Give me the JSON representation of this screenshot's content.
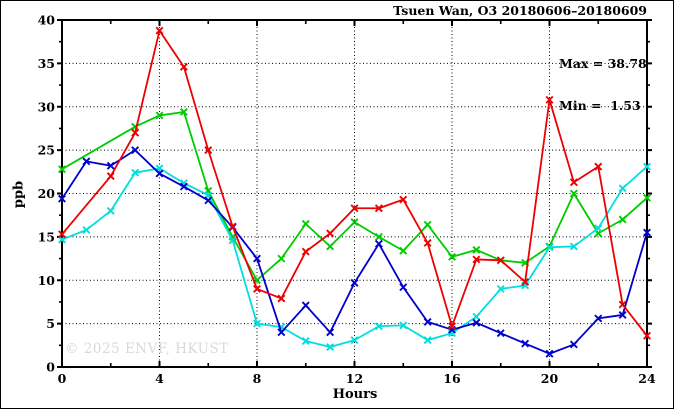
{
  "watermark": "© 2025 ENVF, HKUST",
  "annotation": {
    "max_label": "Max = 38.78",
    "min_label": "Min =  1.53"
  },
  "chart_data": {
    "type": "line",
    "title": "Tsuen Wan, O3 20180606–20180609",
    "xlabel": "Hours",
    "ylabel": "ppb",
    "xlim": [
      0,
      24
    ],
    "ylim": [
      0,
      40
    ],
    "xticks": [
      0,
      4,
      8,
      12,
      16,
      20,
      24
    ],
    "xticks_minor": [
      2,
      6,
      10,
      14,
      18,
      22
    ],
    "yticks": [
      0,
      5,
      10,
      15,
      20,
      25,
      30,
      35,
      40
    ],
    "yticks_minor": [
      2.5,
      7.5,
      12.5,
      17.5,
      22.5,
      27.5,
      32.5,
      37.5
    ],
    "grid": "dotted",
    "legend": "none",
    "max": 38.78,
    "min": 1.53,
    "x": [
      0,
      1,
      2,
      3,
      4,
      5,
      6,
      7,
      8,
      9,
      10,
      11,
      12,
      13,
      14,
      15,
      16,
      17,
      18,
      19,
      20,
      21,
      22,
      23,
      24
    ],
    "series": [
      {
        "name": "green",
        "color": "#00cc00",
        "values": [
          22.8,
          null,
          null,
          27.7,
          29.0,
          29.4,
          20.3,
          15.0,
          10.0,
          12.5,
          16.5,
          13.9,
          16.7,
          15.0,
          13.4,
          16.4,
          12.7,
          13.5,
          12.3,
          12.0,
          13.9,
          20.0,
          15.4,
          17.0,
          19.5
        ]
      },
      {
        "name": "cyan",
        "color": "#00dede",
        "values": [
          14.7,
          15.8,
          18.0,
          22.4,
          22.9,
          21.2,
          19.8,
          14.6,
          5.0,
          4.6,
          3.0,
          2.3,
          3.1,
          4.7,
          4.8,
          3.1,
          3.9,
          5.8,
          9.0,
          9.4,
          13.8,
          13.9,
          16.0,
          20.6,
          23.1
        ]
      },
      {
        "name": "blue",
        "color": "#0000cc",
        "values": [
          19.4,
          23.7,
          23.2,
          25.0,
          22.3,
          20.8,
          19.2,
          16.1,
          12.5,
          4.0,
          7.1,
          4.0,
          9.7,
          14.2,
          9.2,
          5.2,
          4.3,
          5.1,
          3.9,
          2.7,
          1.53,
          2.6,
          5.6,
          6.0,
          15.5
        ]
      },
      {
        "name": "red",
        "color": "#ee0000",
        "values": [
          15.3,
          null,
          22.0,
          27.0,
          38.78,
          34.6,
          25.0,
          16.2,
          9.0,
          7.9,
          13.3,
          15.4,
          18.3,
          18.3,
          19.3,
          14.3,
          4.7,
          12.4,
          12.3,
          9.8,
          30.8,
          21.3,
          23.1,
          7.2,
          3.6
        ]
      }
    ]
  }
}
